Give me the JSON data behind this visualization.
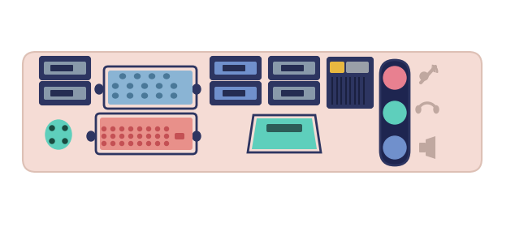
{
  "bg_color": "#ffffff",
  "panel_color": "#f5dcd5",
  "panel_outline": "#ddc0b5",
  "dark_navy": "#2d3561",
  "dark_navy2": "#252d52",
  "ps2_color": "#5ecfbc",
  "ps2_hole_color": "#1a4a40",
  "dvi_fill": "#e8908a",
  "dvi_pin_color": "#c45054",
  "hdmi_fill": "#5ecfbc",
  "hdmi_slot": "#2d5c58",
  "vga_fill": "#8ab4d4",
  "vga_pin_color": "#4a7898",
  "usb_slot_light": "#8899aa",
  "usb_tab": "#252d52",
  "sata_slot_blue": "#7090cc",
  "sata_slot_gray": "#8899aa",
  "eth_body": "#2d3561",
  "eth_yellow": "#e8b840",
  "eth_gray": "#9aa0a8",
  "eth_lines": "#1a2040",
  "audio_pill": "#1e2550",
  "audio_blue": "#7090cc",
  "audio_teal": "#5ecfbc",
  "audio_pink": "#e88090",
  "icon_gray": "#c0a8a0"
}
